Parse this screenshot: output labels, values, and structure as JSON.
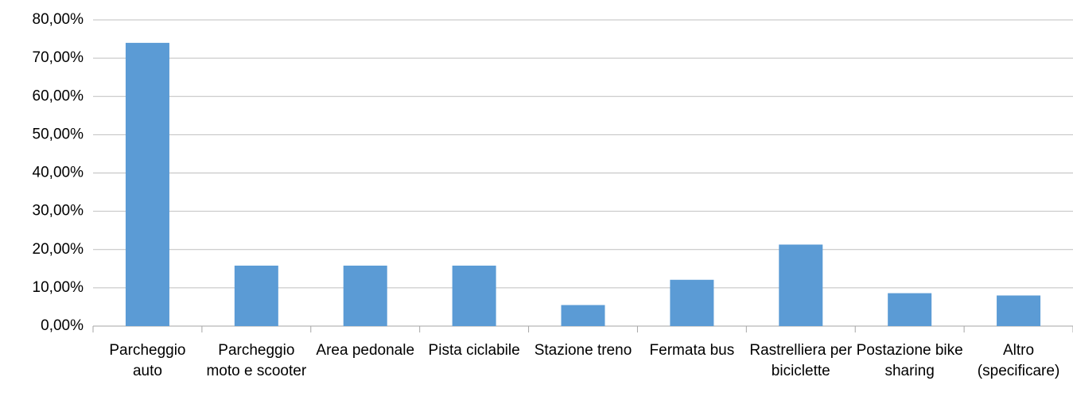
{
  "chart_data": {
    "type": "bar",
    "categories": [
      "Parcheggio auto",
      "Parcheggio moto e scooter",
      "Area pedonale",
      "Pista ciclabile",
      "Stazione treno",
      "Fermata bus",
      "Rastrelliera per biciclette",
      "Postazione bike sharing",
      "Altro (specificare)"
    ],
    "values": [
      74.0,
      15.8,
      15.8,
      15.8,
      5.5,
      12.1,
      21.3,
      8.6,
      8.0
    ],
    "color": "#5b9bd5",
    "ylim": [
      0,
      80
    ],
    "yticks": [
      {
        "value": 0,
        "label": "0,00%"
      },
      {
        "value": 10,
        "label": "10,00%"
      },
      {
        "value": 20,
        "label": "20,00%"
      },
      {
        "value": 30,
        "label": "30,00%"
      },
      {
        "value": 40,
        "label": "40,00%"
      },
      {
        "value": 50,
        "label": "50,00%"
      },
      {
        "value": 60,
        "label": "60,00%"
      },
      {
        "value": 70,
        "label": "70,00%"
      },
      {
        "value": 80,
        "label": "80,00%"
      }
    ],
    "grid": true
  }
}
